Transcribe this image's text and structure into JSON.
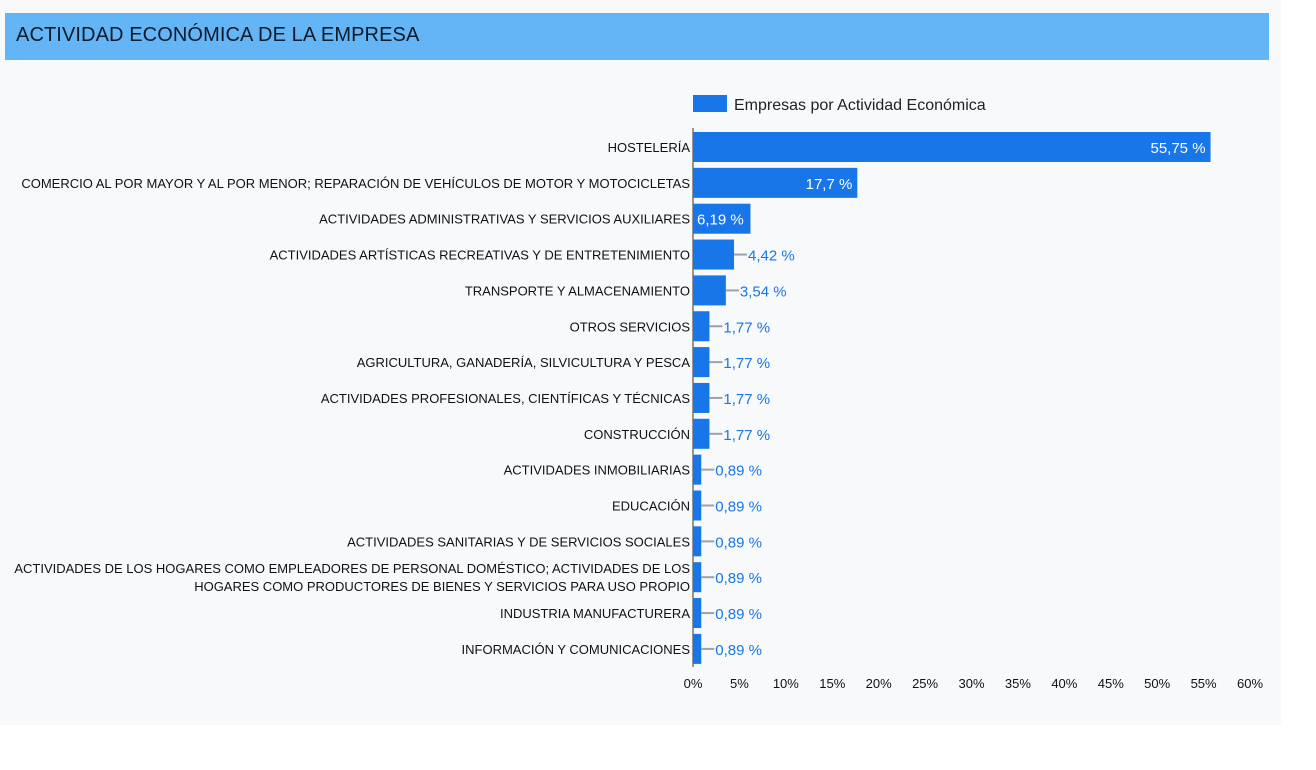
{
  "header": {
    "title": "ACTIVIDAD ECONÓMICA DE LA EMPRESA"
  },
  "colors": {
    "bar": "#1976e8",
    "header": "#64b5f6",
    "label_outside": "#1976e8",
    "label_inside": "#ffffff",
    "leader": "#9aa3ad"
  },
  "chart_data": {
    "type": "bar",
    "orientation": "horizontal",
    "title": "",
    "xlabel": "",
    "ylabel": "",
    "xlim": [
      0,
      60
    ],
    "x_ticks": [
      "0%",
      "5%",
      "10%",
      "15%",
      "20%",
      "25%",
      "30%",
      "35%",
      "40%",
      "45%",
      "50%",
      "55%",
      "60%"
    ],
    "grid": false,
    "legend": "top",
    "series": [
      {
        "name": "Empresas por Actividad Económica",
        "color": "#1976e8",
        "values": [
          55.75,
          17.7,
          6.19,
          4.42,
          3.54,
          1.77,
          1.77,
          1.77,
          1.77,
          0.89,
          0.89,
          0.89,
          0.89,
          0.89,
          0.89
        ],
        "labels": [
          "55,75 %",
          "17,7 %",
          "6,19 %",
          "4,42 %",
          "3,54 %",
          "1,77 %",
          "1,77 %",
          "1,77 %",
          "1,77 %",
          "0,89 %",
          "0,89 %",
          "0,89 %",
          "0,89 %",
          "0,89 %",
          "0,89 %"
        ]
      }
    ],
    "categories": [
      [
        "HOSTELERÍA"
      ],
      [
        "COMERCIO AL POR MAYOR Y AL POR MENOR; REPARACIÓN DE VEHÍCULOS DE MOTOR Y MOTOCICLETAS"
      ],
      [
        "ACTIVIDADES ADMINISTRATIVAS Y SERVICIOS AUXILIARES"
      ],
      [
        "ACTIVIDADES ARTÍSTICAS RECREATIVAS Y DE ENTRETENIMIENTO"
      ],
      [
        "TRANSPORTE Y ALMACENAMIENTO"
      ],
      [
        "OTROS SERVICIOS"
      ],
      [
        "AGRICULTURA, GANADERÍA, SILVICULTURA Y PESCA"
      ],
      [
        "ACTIVIDADES PROFESIONALES, CIENTÍFICAS Y TÉCNICAS"
      ],
      [
        "CONSTRUCCIÓN"
      ],
      [
        "ACTIVIDADES INMOBILIARIAS"
      ],
      [
        "EDUCACIÓN"
      ],
      [
        "ACTIVIDADES SANITARIAS Y DE SERVICIOS SOCIALES"
      ],
      [
        "ACTIVIDADES DE LOS HOGARES COMO EMPLEADORES DE PERSONAL DOMÉSTICO; ACTIVIDADES DE LOS",
        "HOGARES COMO PRODUCTORES DE BIENES Y SERVICIOS PARA USO PROPIO"
      ],
      [
        "INDUSTRIA MANUFACTURERA"
      ],
      [
        "INFORMACIÓN Y COMUNICACIONES"
      ]
    ]
  }
}
